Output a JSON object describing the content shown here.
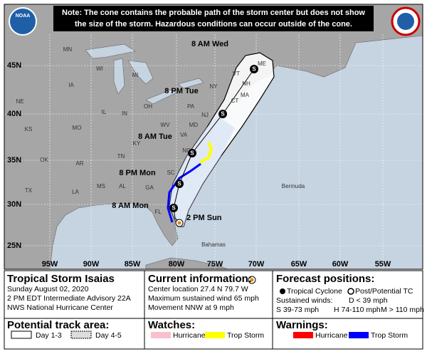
{
  "header": {
    "note": [
      "Note: The cone contains the probable path of the storm center but does not show",
      "the size of the storm. Hazardous conditions can occur outside of the cone."
    ],
    "logo_left": "NOAA"
  },
  "map": {
    "lat_labels": [
      "45N",
      "40N",
      "35N",
      "30N",
      "25N"
    ],
    "lon_labels": [
      "95W",
      "90W",
      "85W",
      "80W",
      "75W",
      "70W",
      "65W",
      "60W",
      "55W"
    ],
    "region_labels": [
      "MN",
      "WI",
      "MI",
      "IA",
      "NE",
      "IL",
      "IN",
      "OH",
      "PA",
      "NY",
      "VT",
      "NH",
      "ME",
      "MA",
      "CT",
      "NJ",
      "MD",
      "WV",
      "VA",
      "KS",
      "MO",
      "KY",
      "TN",
      "NC",
      "OK",
      "AR",
      "SC",
      "MS",
      "AL",
      "GA",
      "TX",
      "LA",
      "FL",
      "Bermuda",
      "Bahamas"
    ],
    "track_labels": [
      "8 AM Wed",
      "8 PM Tue",
      "8 AM Tue",
      "8 PM Mon",
      "8 AM Mon",
      "2 PM Sun"
    ],
    "point_symbol": "S"
  },
  "legend": {
    "storm": {
      "title": "Tropical Storm Isaias",
      "lines": [
        "Sunday August 02, 2020",
        "2 PM EDT Intermediate Advisory 22A",
        "NWS National Hurricane Center"
      ]
    },
    "current": {
      "title": "Current information:",
      "lines": [
        "Center location 27.4 N 79.7 W",
        "Maximum sustained wind 65 mph",
        "Movement NNW at 9 mph"
      ]
    },
    "forecast": {
      "title": "Forecast positions:",
      "tropical": "Tropical Cyclone",
      "post": "Post/Potential TC",
      "winds": "Sustained winds:",
      "d": "D < 39 mph",
      "s": "S 39-73 mph",
      "h": "H 74-110 mph",
      "m": "M > 110 mph"
    },
    "track_area": {
      "title": "Potential track area:",
      "day13": "Day 1-3",
      "day45": "Day 4-5"
    },
    "watches": {
      "title": "Watches:",
      "hurricane": "Hurricane",
      "trop": "Trop Storm"
    },
    "warnings": {
      "title": "Warnings:",
      "hurricane": "Hurricane",
      "trop": "Trop Storm"
    }
  }
}
